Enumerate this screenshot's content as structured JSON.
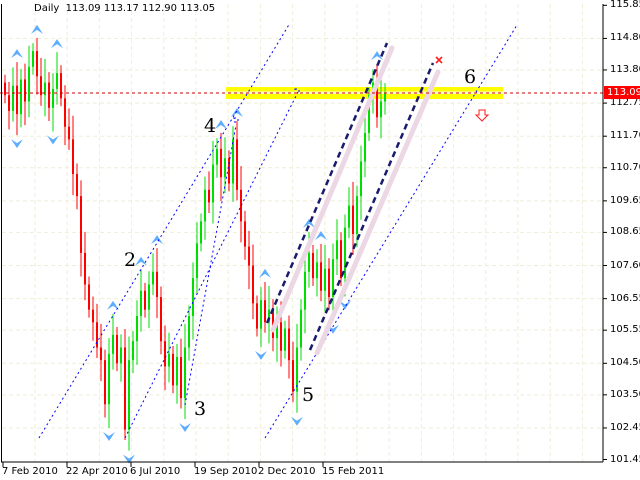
{
  "header": {
    "timeframe": "Daily",
    "ohlc": "113.09 113.17 112.90 113.05"
  },
  "chart_data": {
    "type": "candlestick",
    "timeframe": "Daily",
    "ylim": [
      101.45,
      115.85
    ],
    "grid": true,
    "y_ticks": [
      "115.85",
      "114.80",
      "113.80",
      "112.75",
      "111.70",
      "110.70",
      "109.65",
      "108.65",
      "107.60",
      "106.55",
      "105.55",
      "104.50",
      "103.50",
      "102.45",
      "101.45"
    ],
    "x_ticks": [
      "7 Feb 2010",
      "22 Apr 2010",
      "6 Jul 2010",
      "19 Sep 2010",
      "2 Dec 2010",
      "15 Feb 2011"
    ],
    "current_price": "113.09",
    "last_bar": {
      "open": 113.09,
      "high": 113.17,
      "low": 112.9,
      "close": 113.05
    },
    "close": [
      113.0,
      112.5,
      113.3,
      112.4,
      113.5,
      112.8,
      113.9,
      114.4,
      113.6,
      113.0,
      113.4,
      112.6,
      113.2,
      113.7,
      112.9,
      112.0,
      111.6,
      110.5,
      109.8,
      108.0,
      107.0,
      106.2,
      105.8,
      105.0,
      104.6,
      103.2,
      104.8,
      105.4,
      104.5,
      105.0,
      102.4,
      104.6,
      105.2,
      106.0,
      106.8,
      106.2,
      107.0,
      107.4,
      106.6,
      105.2,
      104.4,
      104.8,
      103.8,
      104.7,
      103.4,
      105.0,
      106.0,
      107.2,
      108.3,
      109.0,
      110.0,
      109.6,
      110.8,
      111.3,
      110.4,
      111.0,
      110.2,
      111.6,
      110.0,
      109.0,
      108.2,
      107.6,
      106.4,
      105.6,
      106.5,
      105.8,
      106.2,
      105.3,
      105.8,
      104.9,
      105.6,
      104.6,
      103.6,
      105.0,
      106.2,
      107.4,
      108.0,
      107.2,
      107.7,
      106.8,
      107.5,
      106.6,
      107.8,
      108.4,
      107.2,
      108.8,
      109.5,
      108.6,
      109.8,
      110.9,
      111.8,
      113.0,
      113.4,
      112.3,
      112.8,
      113.05
    ],
    "wave_labels": [
      "2",
      "3",
      "4",
      "5",
      "6"
    ],
    "resistance_zone": 113.09,
    "colors": {
      "up": "#00dd00",
      "down": "#ff0000",
      "fractal": "#3f9fff",
      "trendline": "#0000ff",
      "channel": "#1a1a6e",
      "zone": "#ffff00",
      "price_line": "#ff0000"
    }
  }
}
